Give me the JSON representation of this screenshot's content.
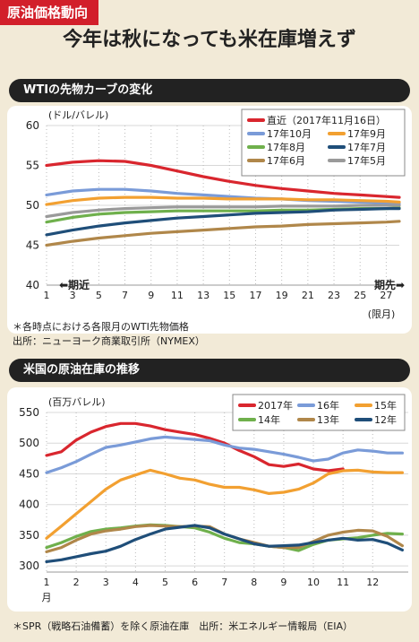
{
  "header": {
    "tag": "原油価格動向",
    "headline": "今年は秋になっても米在庫増えず"
  },
  "chart_data": [
    {
      "type": "line",
      "title": "WTIの先物カーブの変化",
      "ylabel": "(ドル/バレル)",
      "ylim": [
        40,
        60
      ],
      "yticks": [
        40,
        45,
        50,
        55,
        60
      ],
      "xlim": [
        1,
        28
      ],
      "xticks": [
        "1",
        "3",
        "5",
        "7",
        "9",
        "11",
        "13",
        "15",
        "17",
        "19",
        "21",
        "23",
        "25",
        "27"
      ],
      "xunit": "(限月)",
      "left_annotation": "期近",
      "right_annotation": "期先",
      "legend_position": "top-right",
      "grid": true,
      "x": [
        1,
        3,
        5,
        7,
        9,
        11,
        13,
        15,
        17,
        19,
        21,
        23,
        25,
        27,
        28
      ],
      "series": [
        {
          "name": "直近（2017年11月16日）",
          "color": "#d9262e",
          "values": [
            55.0,
            55.4,
            55.6,
            55.5,
            55.0,
            54.3,
            53.6,
            53.0,
            52.5,
            52.1,
            51.8,
            51.5,
            51.3,
            51.1,
            51.0
          ]
        },
        {
          "name": "17年10月",
          "color": "#7a9bd8",
          "values": [
            51.3,
            51.8,
            52.0,
            52.0,
            51.8,
            51.5,
            51.3,
            51.1,
            50.9,
            50.8,
            50.6,
            50.5,
            50.4,
            50.3,
            50.2
          ]
        },
        {
          "name": "17年9月",
          "color": "#f2a031",
          "values": [
            50.1,
            50.6,
            50.9,
            51.0,
            51.0,
            50.9,
            50.9,
            50.8,
            50.8,
            50.8,
            50.7,
            50.7,
            50.6,
            50.5,
            50.4
          ]
        },
        {
          "name": "17年8月",
          "color": "#6fb04c",
          "values": [
            47.9,
            48.5,
            48.9,
            49.1,
            49.2,
            49.3,
            49.3,
            49.3,
            49.3,
            49.4,
            49.4,
            49.5,
            49.6,
            49.6,
            49.7
          ]
        },
        {
          "name": "17年7月",
          "color": "#1f4e79",
          "values": [
            46.3,
            46.9,
            47.4,
            47.8,
            48.1,
            48.4,
            48.6,
            48.8,
            49.0,
            49.1,
            49.2,
            49.4,
            49.5,
            49.6,
            49.6
          ]
        },
        {
          "name": "17年6月",
          "color": "#b0874a",
          "values": [
            45.0,
            45.5,
            45.9,
            46.2,
            46.5,
            46.7,
            46.9,
            47.1,
            47.3,
            47.4,
            47.6,
            47.7,
            47.8,
            47.9,
            48.0
          ]
        },
        {
          "name": "17年5月",
          "color": "#9a9a9a",
          "values": [
            48.6,
            49.1,
            49.4,
            49.6,
            49.7,
            49.8,
            49.8,
            49.8,
            49.8,
            49.9,
            49.9,
            49.9,
            50.0,
            50.0,
            50.0
          ]
        }
      ],
      "note": "＊各時点における各限月のWTI先物価格",
      "source": "出所：ニューヨーク商業取引所（NYMEX）"
    },
    {
      "type": "line",
      "title": "米国の原油在庫の推移",
      "ylabel": "(百万バレル)",
      "ylim": [
        290,
        550
      ],
      "yticks": [
        300,
        350,
        400,
        450,
        500,
        550
      ],
      "xlim": [
        1,
        13.2
      ],
      "xticks": [
        "1",
        "2",
        "3",
        "4",
        "5",
        "6",
        "7",
        "8",
        "9",
        "10",
        "11",
        "12"
      ],
      "xunit": "月",
      "legend_position": "top-right",
      "grid": true,
      "x": [
        1,
        1.5,
        2,
        2.5,
        3,
        3.5,
        4,
        4.5,
        5,
        5.5,
        6,
        6.5,
        7,
        7.5,
        8,
        8.5,
        9,
        9.5,
        10,
        10.5,
        11,
        11.5,
        12,
        12.5,
        13
      ],
      "series": [
        {
          "name": "2017年",
          "color": "#d9262e",
          "values": [
            480,
            486,
            505,
            518,
            527,
            532,
            532,
            528,
            522,
            518,
            514,
            508,
            500,
            488,
            478,
            465,
            462,
            466,
            458,
            455,
            458,
            null,
            null,
            null,
            null
          ]
        },
        {
          "name": "16年",
          "color": "#7a9bd8",
          "values": [
            452,
            460,
            470,
            482,
            493,
            497,
            502,
            507,
            510,
            508,
            506,
            504,
            497,
            492,
            490,
            486,
            482,
            477,
            471,
            474,
            484,
            489,
            487,
            484,
            484
          ]
        },
        {
          "name": "15年",
          "color": "#f2a031",
          "values": [
            345,
            365,
            385,
            405,
            425,
            440,
            448,
            456,
            450,
            443,
            440,
            433,
            428,
            428,
            424,
            418,
            420,
            425,
            435,
            450,
            455,
            456,
            453,
            452,
            452
          ]
        },
        {
          "name": "14年",
          "color": "#6fb04c",
          "values": [
            330,
            338,
            348,
            356,
            360,
            362,
            365,
            367,
            366,
            364,
            362,
            355,
            345,
            338,
            336,
            332,
            330,
            325,
            335,
            342,
            344,
            346,
            350,
            353,
            352
          ]
        },
        {
          "name": "13年",
          "color": "#b0874a",
          "values": [
            323,
            330,
            342,
            352,
            357,
            360,
            364,
            366,
            365,
            364,
            365,
            364,
            352,
            344,
            338,
            332,
            330,
            330,
            340,
            350,
            355,
            358,
            357,
            348,
            333
          ]
        },
        {
          "name": "12年",
          "color": "#1f4e79",
          "values": [
            307,
            310,
            315,
            320,
            324,
            332,
            343,
            352,
            360,
            363,
            366,
            362,
            352,
            344,
            336,
            332,
            333,
            334,
            338,
            342,
            345,
            342,
            343,
            337,
            326
          ]
        }
      ],
      "note": "＊SPR（戦略石油備蓄）を除く原油在庫　出所：米エネルギー情報局（EIA）"
    }
  ]
}
